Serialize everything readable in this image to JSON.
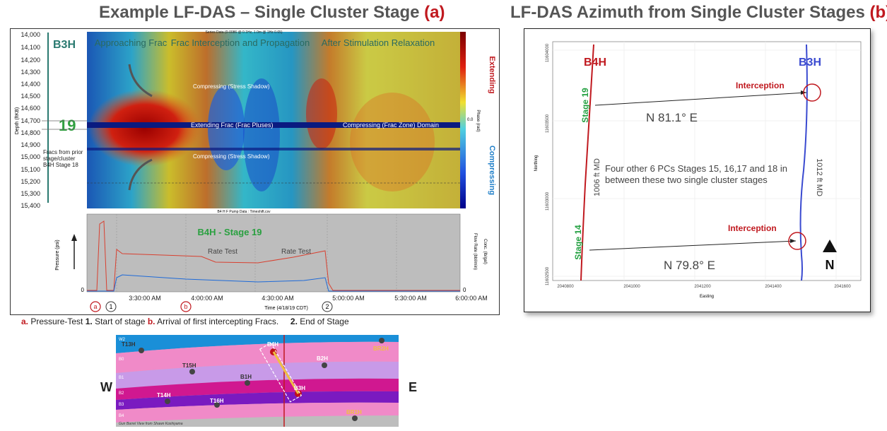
{
  "panel_a": {
    "title": "Example LF-DAS – Single Cluster Stage",
    "tag": "(a)",
    "well_label": "B3H",
    "depth_ticks": [
      "14,000",
      "14,100",
      "14,200",
      "14,300",
      "14,400",
      "14,500",
      "14,600",
      "14,700",
      "14,800",
      "14,900",
      "15,000",
      "15,100",
      "15,200",
      "15,300",
      "15,400"
    ],
    "depth_axis_label": "Depth (ftKB)",
    "stage_number": "19",
    "header_small": "Series Data (0-0086 @ 0.1Hz, 1.0m @ 1Hz 0.65)",
    "phase_labels": [
      "Approaching Frac",
      "Frac Interception and Propagation",
      "After Stimulation Relaxation"
    ],
    "annotations": {
      "compress_top": "Compressing (Stress Shadow)",
      "extend_frac": "Extending Frac (Frac Pluses)",
      "compress_zone": "Compressing (Frac Zone) Domain",
      "compress_bottom": "Compressing (Stress Shadow)",
      "prior_stage": "Fracs from prior stage/cluster B4H Stage 18"
    },
    "colorbar": {
      "top_label": "Extending",
      "bottom_label": "Compressing",
      "axis_label": "Phase (rad)",
      "zero": "0.0",
      "top_color": "#c0191f",
      "bottom_color": "#1e7ec8"
    },
    "pump_header": "B4 H F Pump Data : Timeshift.csv",
    "pump_title": "B4H - Stage 19",
    "rate_test_labels": [
      "Rate Test",
      "Rate Test"
    ],
    "pressure_label": "Pressure (psi)",
    "pressure_zero": "0",
    "flow_labels": [
      "Flow Rate (bbl/min)",
      "Conc. (lb/gal)"
    ],
    "flow_zero": "0",
    "time_ticks": [
      "3:30:00 AM",
      "4:00:00 AM",
      "4:30:00 AM",
      "5:00:00 AM",
      "5:30:00 AM",
      "6:00:00 AM"
    ],
    "time_axis_label": "Time (4/18/19 CDT)",
    "markers": [
      "a",
      "1",
      "b",
      "2"
    ]
  },
  "caption": {
    "a_key": "a.",
    "a_text": "Pressure-Test",
    "one_key": "1.",
    "one_text": "Start of stage",
    "b_key": "b.",
    "b_text": "Arrival of first intercepting Fracs.",
    "two_key": "2.",
    "two_text": "End of Stage"
  },
  "panel_b": {
    "title": "LF-DAS Azimuth from Single Cluster Stages",
    "tag": "(b)",
    "well_left": "B4H",
    "well_right": "B3H",
    "stage_top": "Stage 19",
    "stage_bottom": "Stage 14",
    "interception": "Interception",
    "azimuth_top": "N 81.1° E",
    "azimuth_bottom": "N 79.8° E",
    "md_left": "1006 ft MD",
    "md_right": "1012 ft MD",
    "note": "Four other 6 PCs Stages 15, 16,17 and 18 in between these two single cluster stages",
    "north": "N",
    "x_label": "Easting",
    "y_label": "Northing",
    "x_ticks": [
      "2040800",
      "2041000",
      "2041200",
      "2041400",
      "2041600"
    ],
    "y_ticks": [
      "11604000",
      "11603500",
      "11603000",
      "11602500"
    ]
  },
  "gun_barrel": {
    "west": "W",
    "east": "E",
    "layers": [
      "W2",
      "B0",
      "B1",
      "B2",
      "B3",
      "B4"
    ],
    "wells": [
      "T13H",
      "T15H",
      "B1H",
      "B4H",
      "B2H",
      "BR2H",
      "T14H",
      "T16H",
      "BR1H",
      "B3H"
    ],
    "credit": "Gun Barrel View from Shawn Koshiyama"
  }
}
